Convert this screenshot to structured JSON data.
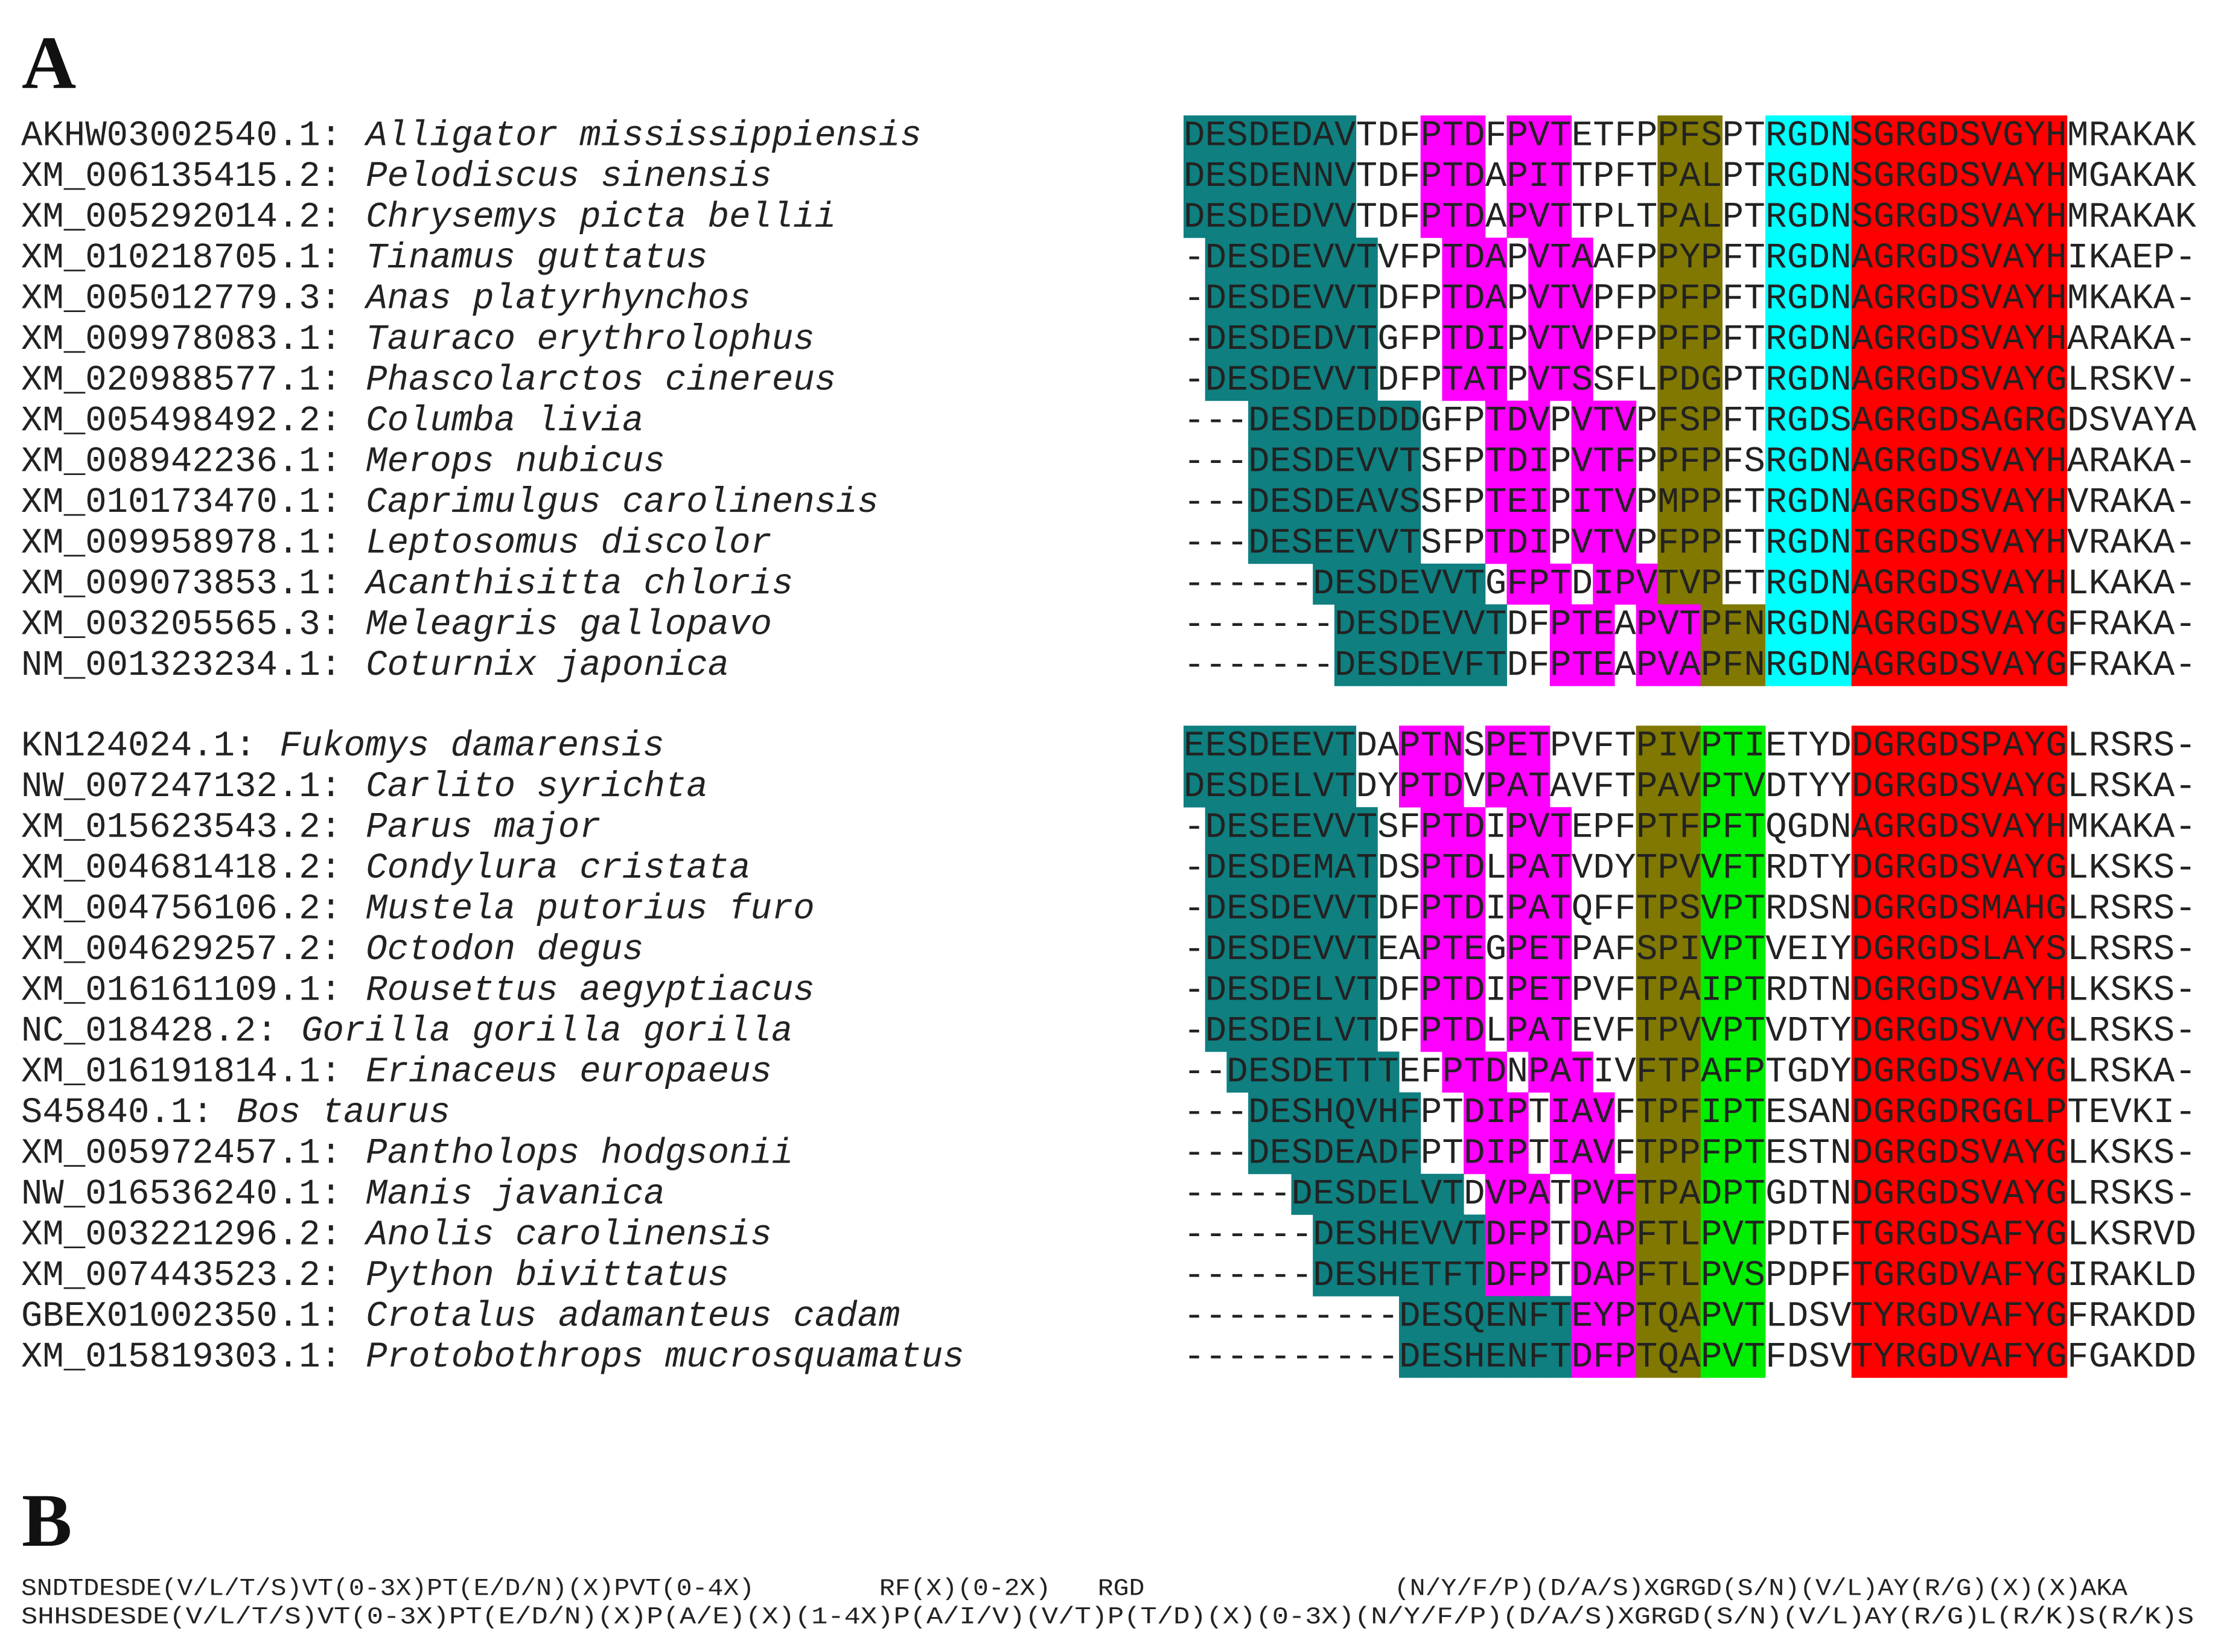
{
  "panel_a": {
    "label": "A",
    "groups": [
      {
        "rows": [
          {
            "accession": "AKHW03002540.1:",
            "species": "Alligator mississippiensis",
            "sequence": "DESDEDAVTDFPTDFPVTETFPPFSPTRGDNSGRGDSVGYHMRAKAK"
          },
          {
            "accession": "XM_006135415.2:",
            "species": "Pelodiscus sinensis",
            "sequence": "DESDENNVTDFPTDAPITTPFTPALPTRGDNSGRGDSVAYHMGAKAK"
          },
          {
            "accession": "XM_005292014.2:",
            "species": "Chrysemys picta bellii",
            "sequence": "DESDEDVVTDFPTDAPVTTPLTPALPTRGDNSGRGDSVAYHMRAKAK"
          },
          {
            "accession": "XM_010218705.1:",
            "species": "Tinamus guttatus",
            "sequence": "-DESDEVVTVFPTDAPVTAAFPPYPFTRGDNAGRGDSVAYHIKAEP-"
          },
          {
            "accession": "XM_005012779.3:",
            "species": "Anas platyrhynchos",
            "sequence": "-DESDEVVTDFPTDAPVTVPFPPFPFTRGDNAGRGDSVAYHMKAKA-"
          },
          {
            "accession": "XM_009978083.1:",
            "species": "Tauraco erythrolophus",
            "sequence": "-DESDEDVTGFPTDIPVTVPFPPFPFTRGDNAGRGDSVAYHARAKA-"
          },
          {
            "accession": "XM_020988577.1:",
            "species": "Phascolarctos cinereus",
            "sequence": "-DESDEVVTDFPTATPVTSSFLPDGPTRGDNAGRGDSVAYGLRSKV-"
          },
          {
            "accession": "XM_005498492.2:",
            "species": "Columba livia",
            "sequence": "---DESDEDDDGFPTDVPVTVPFSPFTRGDSAGRGDSAGRGDSVAYA"
          },
          {
            "accession": "XM_008942236.1:",
            "species": "Merops nubicus",
            "sequence": "---DESDEVVTSFPTDIPVTFPPFPFSRGDNAGRGDSVAYHARAKA-"
          },
          {
            "accession": "XM_010173470.1:",
            "species": "Caprimulgus carolinensis",
            "sequence": "---DESDEAVSSFPTEIPITVPMPPFTRGDNAGRGDSVAYHVRAKA-"
          },
          {
            "accession": "XM_009958978.1:",
            "species": "Leptosomus discolor",
            "sequence": "---DESEEVVTSFPTDIPVTVPFPPFTRGDNIGRGDSVAYHVRAKA-"
          },
          {
            "accession": "XM_009073853.1:",
            "species": "Acanthisitta chloris",
            "sequence": "------DESDEVVTGFPTDIPVTVPFTRGDNAGRGDSVAYHLKAKA-"
          },
          {
            "accession": "XM_003205565.3:",
            "species": "Meleagris gallopavo",
            "sequence": "-------DESDEVVTDFPTEAPVTPFNRGDNAGRGDSVAYGFRAKA-"
          },
          {
            "accession": "NM_001323234.1:",
            "species": "Coturnix japonica",
            "sequence": "-------DESDEVFTDFPTEAPVAPFNRGDNAGRGDSVAYGFRAKA-"
          }
        ]
      },
      {
        "rows": [
          {
            "accession": "KN124024.1:",
            "species": "Fukomys damarensis",
            "sequence": "EESDEEVTDAPTNSPETPVFTPIVPTIETYDDGRGDSPAYGLRSRS-"
          },
          {
            "accession": "NW_007247132.1:",
            "species": "Carlito syrichta",
            "sequence": "DESDELVTDYPTDVPATAVFTPAVPTVDTYYDGRGDSVAYGLRSKA-"
          },
          {
            "accession": "XM_015623543.2:",
            "species": "Parus major",
            "sequence": "-DESEEVVTSFPTDIPVTEPFPTFPFTQGDNAGRGDSVAYHMKAKA-"
          },
          {
            "accession": "XM_004681418.2:",
            "species": "Condylura cristata",
            "sequence": "-DESDEMATDSPTDLPATVDYTPVVFTRDTYDGRGDSVAYGLKSKS-"
          },
          {
            "accession": "XM_004756106.2:",
            "species": "Mustela putorius furo",
            "sequence": "-DESDEVVTDFPTDIPATQFFTPSVPTRDSNDGRGDSMAHGLRSRS-"
          },
          {
            "accession": "XM_004629257.2:",
            "species": "Octodon degus",
            "sequence": "-DESDEVVTEAPTEGPETPAFSPIVPTVEIYDGRGDSLAYSLRSRS-"
          },
          {
            "accession": "XM_016161109.1:",
            "species": "Rousettus aegyptiacus",
            "sequence": "-DESDELVTDFPTDIPETPVFTPAIPTRDTNDGRGDSVAYHLKSKS-"
          },
          {
            "accession": "NC_018428.2:",
            "species": "Gorilla gorilla gorilla",
            "sequence": "-DESDELVTDFPTDLPATEVFTPVVPTVDTYDGRGDSVVYGLRSKS-"
          },
          {
            "accession": "XM_016191814.1:",
            "species": "Erinaceus europaeus",
            "sequence": "--DESDETTTEFPTDNPATIVFTPAFPTGDYDGRGDSVAYGLRSKA-"
          },
          {
            "accession": "S45840.1:",
            "species": "Bos taurus",
            "sequence": "---DESHQVHFPTDIPTIAVFTPFIPTESANDGRGDRGGLPTEVKI-"
          },
          {
            "accession": "XM_005972457.1:",
            "species": "Pantholops hodgsonii",
            "sequence": "---DESDEADFPTDIPTIAVFTPPFPTESTNDGRGDSVAYGLKSKS-"
          },
          {
            "accession": "NW_016536240.1:",
            "species": "Manis javanica",
            "sequence": "-----DESDELVTDVPATPVFTPADPTGDTNDGRGDSVAYGLRSKS-"
          },
          {
            "accession": "XM_003221296.2:",
            "species": "Anolis carolinensis",
            "sequence": "------DESHEVVTDFPTDAPFTLPVTPDTFTGRGDSAFYGLKSRVD"
          },
          {
            "accession": "XM_007443523.2:",
            "species": "Python bivittatus",
            "sequence": "------DESHETFTDFPTDAPFTLPVSPDPFTGRGDVAFYGIRAKLD"
          },
          {
            "accession": "GBEX01002350.1:",
            "species": "Crotalus adamanteus cadam",
            "sequence": "----------DESQENFTEYPTQAPVTLDSVTYRGDVAFYGFRAKDD"
          },
          {
            "accession": "XM_015819303.1:",
            "species": "Protobothrops mucrosquamatus",
            "sequence": "----------DESHENFTDFPTQAPVTFDSVTYRGDVAFYGFGAKDD"
          }
        ]
      }
    ]
  },
  "panel_b": {
    "label": "B",
    "motifs": [
      "SNDTDESDE(V/L/T/S)VT(0-3X)PT(E/D/N)(X)PVT(0-4X)        RF(X)(0-2X)   RGD                (N/Y/F/P)(D/A/S)XGRGD(S/N)(V/L)AY(R/G)(X)(X)AKA",
      "SHHSDESDE(V/L/T/S)VT(0-3X)PT(E/D/N)(X)P(A/E)(X)(1-4X)P(A/I/V)(V/T)P(T/D)(X)(0-3X)(N/Y/F/P)(D/A/S)XGRGD(S/N)(V/L)AY(R/G)L(R/K)S(R/K)S"
    ]
  }
}
